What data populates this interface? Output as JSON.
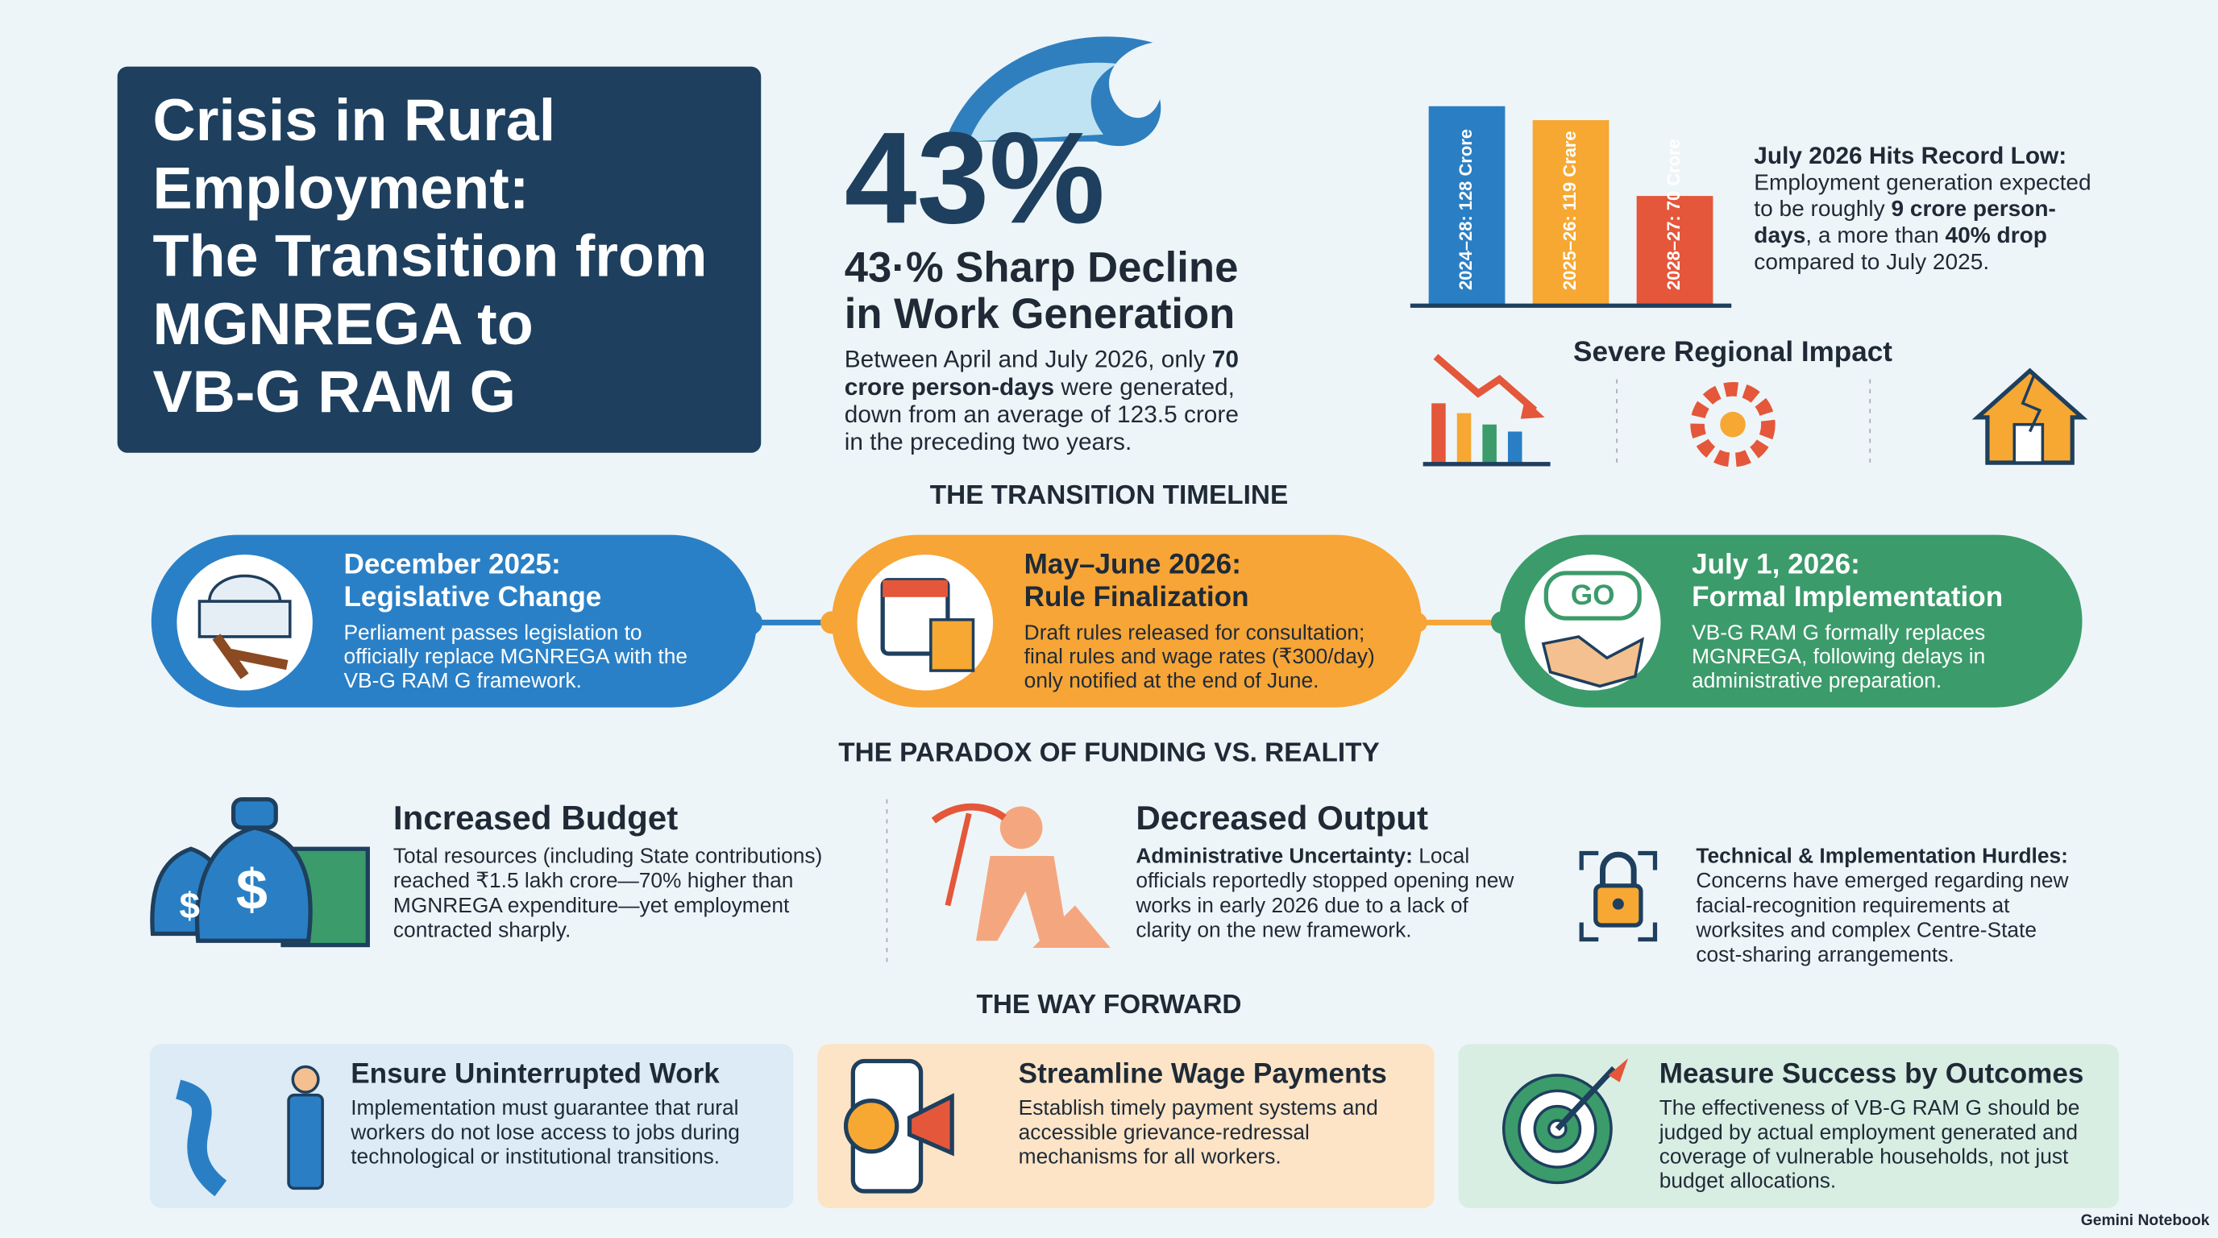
{
  "header": {
    "title_lines": [
      "Crisis in Rural",
      "Employment:",
      "The Transition from",
      "MGNREGA to",
      "VB-G RAM G"
    ]
  },
  "headline": {
    "big_stat": "43%",
    "title_lines": [
      "43·% Sharp Decline",
      "in Work Generation"
    ],
    "body_lines": [
      [
        {
          "text": "Between April and July 2026, only ",
          "bold": false
        },
        {
          "text": "70",
          "bold": true
        }
      ],
      [
        {
          "text": "crore person-days",
          "bold": true
        },
        {
          "text": " were generated,",
          "bold": false
        }
      ],
      "down from an average of 123.5 crore",
      "in the preceding two years."
    ]
  },
  "bar_chart": {
    "bars": [
      {
        "label": "2024–28: 128 Crore",
        "value": 128,
        "color": "#2a7fc4"
      },
      {
        "label": "2025–26: 119 Crare",
        "value": 119,
        "color": "#f6a833"
      },
      {
        "label": "2028–27: 70 Crore",
        "value": 70,
        "color": "#e4573a"
      }
    ]
  },
  "callout": {
    "title": "July 2026 Hits Record Low:",
    "body_lines": [
      "Employment generation expected",
      [
        {
          "text": "to be roughly ",
          "bold": false
        },
        {
          "text": "9 crore person-",
          "bold": true
        }
      ],
      [
        {
          "text": "days",
          "bold": true
        },
        {
          "text": ", a more than ",
          "bold": false
        },
        {
          "text": "40% drop",
          "bold": true
        }
      ],
      "compared to July 2025."
    ]
  },
  "regional": {
    "title": "Severe Regional Impact"
  },
  "timeline": {
    "heading": "THE TRANSITION TIMELINE",
    "items": [
      {
        "title_lines": [
          "December 2025:",
          "Legislative Change"
        ],
        "body_lines": [
          "Perliament passes legislation to",
          "officially replace MGNREGA with the",
          "VB-G RAM G framework."
        ],
        "color": "#2a80c6"
      },
      {
        "title_lines": [
          "May–June 2026:",
          "Rule Finalization"
        ],
        "body_lines": [
          "Draft rules released for consultation;",
          "final rules and wage rates (₹300/day)",
          "only notified at the end of June."
        ],
        "color": "#f7a536"
      },
      {
        "title_lines": [
          "July 1, 2026:",
          "Formal Implementation"
        ],
        "body_lines": [
          "VB-G RAM G formally replaces",
          "MGNREGA, following delays in",
          "administrative preparation."
        ],
        "color": "#3b9b6b",
        "badge": "GO"
      }
    ]
  },
  "paradox": {
    "heading": "THE PARADOX OF FUNDING VS. REALITY",
    "items": [
      {
        "title": "Increased Budget",
        "body_lines": [
          "Total resources (including State contributions)",
          "reached ₹1.5 lakh crore—70% higher than",
          "MGNREGA expenditure—yet employment",
          "contracted sharply."
        ]
      },
      {
        "title": "Decreased Output",
        "body_lines": [
          [
            {
              "text": "Administrative Uncertainty:",
              "bold": true
            },
            {
              "text": " Local",
              "bold": false
            }
          ],
          "officials reportedly stopped opening new",
          "works in early 2026 due to a lack of",
          "clarity on the new framework."
        ]
      },
      {
        "body_lines": [
          [
            {
              "text": "Technical & Implementation Hurdles:",
              "bold": true
            }
          ],
          "Concerns have emerged regarding new",
          "facial-recognition requirements at",
          "worksites and complex Centre-State",
          "cost-sharing arrangements."
        ]
      }
    ]
  },
  "way_forward": {
    "heading": "THE WAY FORWARD",
    "cards": [
      {
        "title": "Ensure Uninterrupted Work",
        "body_lines": [
          "Implementation must guarantee that rural",
          "workers do not lose access to jobs during",
          "technological or institutional transitions."
        ],
        "color": "#dcebf6"
      },
      {
        "title": "Streamline Wage Payments",
        "body_lines": [
          "Establish timely payment systems and",
          "accessible grievance-redressal",
          "mechanisms for all workers."
        ],
        "color": "#fde4c6"
      },
      {
        "title": "Measure Success by Outcomes",
        "body_lines": [
          "The effectiveness of VB-G RAM G should be",
          "judged by actual employment generated and",
          "coverage of vulnerable households, not just",
          "budget allocations."
        ],
        "color": "#d9eee3"
      }
    ]
  },
  "footer": {
    "brand": "Gemini Notebook"
  }
}
